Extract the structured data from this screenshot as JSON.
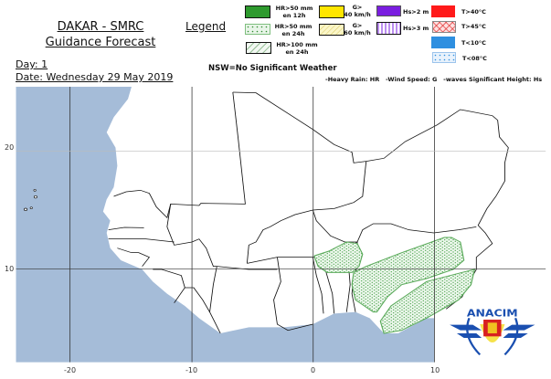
{
  "header": {
    "title_line1": "DAKAR - SMRC",
    "title_line2": "Guidance Forecast",
    "day": "Day: 1",
    "date": "Date: Wednesday 29 May 2019"
  },
  "legend": {
    "title": "Legend",
    "items": [
      {
        "label1": "HR>50 mm",
        "label2": "en 12h",
        "color": "#2e9a2e",
        "pattern": "solid"
      },
      {
        "label1": "HR>50 mm",
        "label2": "en 24h",
        "color": "#2e9a2e",
        "pattern": "dots"
      },
      {
        "label1": "HR>100 mm",
        "label2": "en 24h",
        "color": "#2e9a2e",
        "pattern": "hatch"
      },
      {
        "label1": "G>",
        "label2": "40 km/h",
        "color": "#ffe600",
        "pattern": "solid"
      },
      {
        "label1": "G>",
        "label2": "60 km/h",
        "color": "#e8d84a",
        "pattern": "hatch"
      },
      {
        "label1": "Hs>2 m",
        "label2": "",
        "color": "#7a1ee0",
        "pattern": "solid"
      },
      {
        "label1": "Hs>3 m",
        "label2": "",
        "color": "#7a1ee0",
        "pattern": "vertical-lines"
      },
      {
        "label1": "T>40°C",
        "label2": "",
        "color": "#ff1a1a",
        "pattern": "solid"
      },
      {
        "label1": "T>45°C",
        "label2": "",
        "color": "#e02020",
        "pattern": "crosshatch"
      },
      {
        "label1": "T<10°C",
        "label2": "",
        "color": "#2e8fe0",
        "pattern": "solid"
      },
      {
        "label1": "T<08°C",
        "label2": "",
        "color": "#2e8fe0",
        "pattern": "dots"
      }
    ],
    "nsw": "NSW=No Significant Weather",
    "key": "-Heavy Rain: HR   -Wind Speed: G   -waves Significant Height: Hs"
  },
  "map": {
    "ocean_color": "#a5bcd8",
    "land_color": "#ffffff",
    "forecast_areas": [
      {
        "type": "HR>50 mm en 24h",
        "regions": [
          "Togo/Benin north",
          "Nigeria central",
          "Nigeria south-east"
        ]
      }
    ],
    "lon_labels": [
      "-20",
      "-10",
      "0",
      "10"
    ],
    "lat_labels": [
      "20",
      "10"
    ]
  },
  "logo": {
    "text": "ANACIM"
  }
}
